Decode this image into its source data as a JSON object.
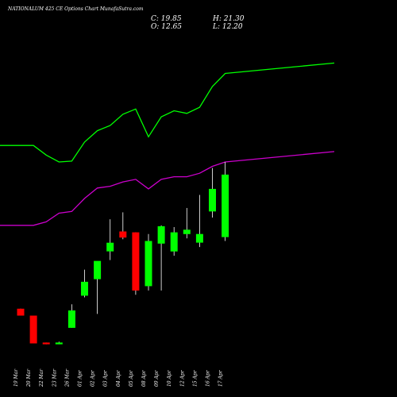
{
  "header": {
    "title": "NATIONALUM 425 CE Options  Chart MunafaSutra.com",
    "close_label": "C: 19.85",
    "high_label": "H: 21.30",
    "open_label": "O: 12.65",
    "low_label": "L: 12.20"
  },
  "colors": {
    "background": "#000000",
    "up": "#00ff00",
    "down": "#ff0000",
    "wick": "#ffffff",
    "line_fast": "#00ff00",
    "line_slow": "#cc00cc"
  },
  "chart_data": {
    "type": "candlestick",
    "categories": [
      "19 Mar",
      "20 Mar",
      "22 Mar",
      "23 Mar",
      "26 Mar",
      "01 Apr",
      "02 Apr",
      "03 Apr",
      "04 Apr",
      "05 Apr",
      "08 Apr",
      "09 Apr",
      "10 Apr",
      "12 Apr",
      "15 Apr",
      "16 Apr",
      "17 Apr"
    ],
    "candles": [
      {
        "o": 4.4,
        "h": 4.4,
        "l": 3.6,
        "c": 3.6
      },
      {
        "o": 3.6,
        "h": 3.6,
        "l": 0.4,
        "c": 0.4
      },
      {
        "o": 0.5,
        "h": 0.5,
        "l": 0.3,
        "c": 0.3
      },
      {
        "o": 0.3,
        "h": 0.6,
        "l": 0.3,
        "c": 0.5
      },
      {
        "o": 2.2,
        "h": 4.9,
        "l": 2.2,
        "c": 4.2
      },
      {
        "o": 5.9,
        "h": 8.9,
        "l": 5.7,
        "c": 7.5
      },
      {
        "o": 7.8,
        "h": 9.8,
        "l": 3.8,
        "c": 9.9
      },
      {
        "o": 11.0,
        "h": 14.7,
        "l": 10.0,
        "c": 12.0
      },
      {
        "o": 13.3,
        "h": 15.5,
        "l": 12.4,
        "c": 12.6
      },
      {
        "o": 13.2,
        "h": 13.2,
        "l": 6.0,
        "c": 6.5
      },
      {
        "o": 7.0,
        "h": 13.0,
        "l": 6.5,
        "c": 12.2
      },
      {
        "o": 11.9,
        "h": 14.0,
        "l": 6.5,
        "c": 13.9
      },
      {
        "o": 11.0,
        "h": 13.8,
        "l": 10.5,
        "c": 13.2
      },
      {
        "o": 13.0,
        "h": 16.0,
        "l": 12.5,
        "c": 13.5
      },
      {
        "o": 12.0,
        "h": 17.5,
        "l": 11.5,
        "c": 13.0
      },
      {
        "o": 15.6,
        "h": 20.6,
        "l": 14.9,
        "c": 18.2
      },
      {
        "o": 12.65,
        "h": 21.3,
        "l": 12.2,
        "c": 19.85
      }
    ],
    "line_fast": [
      23.2,
      23.2,
      22.1,
      21.3,
      21.4,
      23.6,
      24.9,
      25.5,
      26.8,
      27.4,
      24.2,
      26.5,
      27.2,
      26.9,
      27.6,
      30.0,
      31.5
    ],
    "line_slow": [
      14.0,
      14.0,
      14.4,
      15.4,
      15.6,
      17.1,
      18.3,
      18.5,
      19.0,
      19.3,
      18.2,
      19.3,
      19.6,
      19.6,
      20.0,
      20.8,
      21.3
    ],
    "ylim": [
      -1.2,
      36.3
    ],
    "xlabel": "",
    "ylabel": "",
    "grid": false
  }
}
